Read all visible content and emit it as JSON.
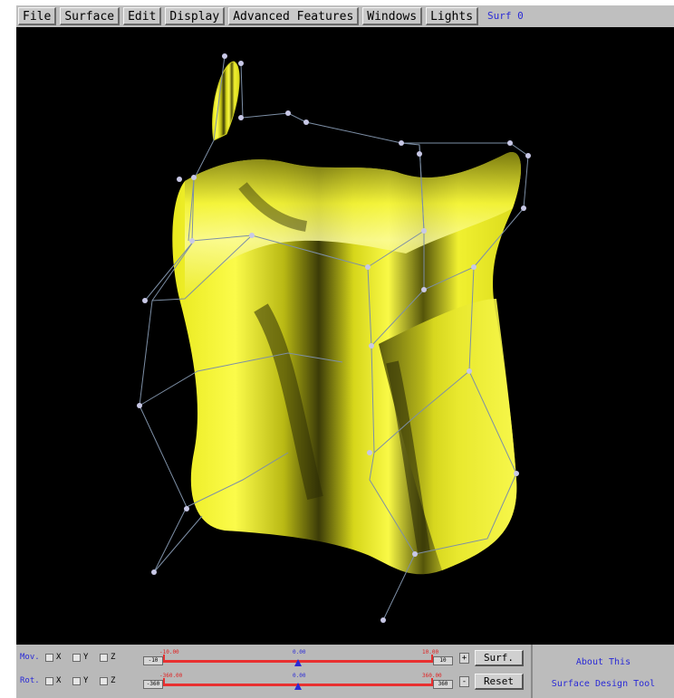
{
  "menu": {
    "items": [
      "File",
      "Surface",
      "Edit",
      "Display",
      "Advanced Features",
      "Windows",
      "Lights"
    ],
    "current_surface": "Surf 0"
  },
  "viewport": {
    "background": "#000000",
    "surface_color": "#f2f21c",
    "control_net_color": "#7d8fa6",
    "control_point_color": "#c8c8e6"
  },
  "controls": {
    "move": {
      "label": "Mov.",
      "axes": [
        "X",
        "Y",
        "Z"
      ],
      "min_value": "-10.00",
      "mid_value": "0.00",
      "max_value": "10.00",
      "min_box": "-10",
      "max_box": "10",
      "step": "+",
      "action": "Surf."
    },
    "rotate": {
      "label": "Rot.",
      "axes": [
        "X",
        "Y",
        "Z"
      ],
      "min_value": "-360.00",
      "mid_value": "0.00",
      "max_value": "360.00",
      "min_box": "-360",
      "max_box": "360",
      "step": "-",
      "action": "Reset"
    },
    "about_line1": "About This",
    "about_line2": "Surface Design Tool"
  }
}
